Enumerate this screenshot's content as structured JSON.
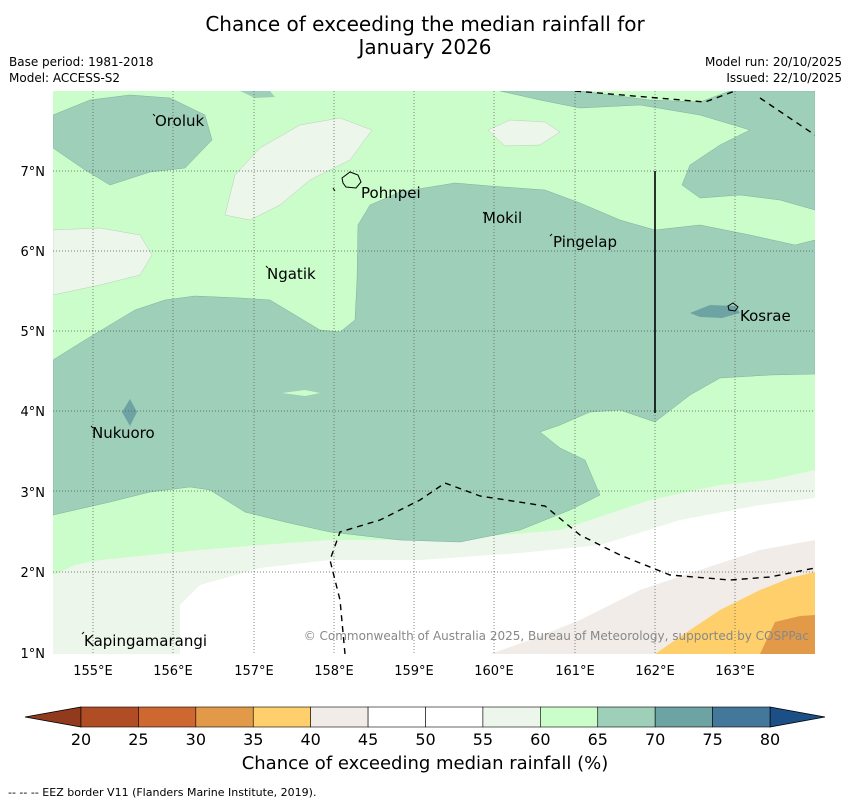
{
  "header": {
    "title_line1": "Chance of exceeding the median rainfall for",
    "title_line2": "January 2026",
    "base_period": "Base period: 1981-2018",
    "model": "Model: ACCESS-S2",
    "model_run": "Model run: 20/10/2025",
    "issued": "Issued: 22/10/2025"
  },
  "map": {
    "lon_labels": [
      "155°E",
      "156°E",
      "157°E",
      "158°E",
      "159°E",
      "160°E",
      "161°E",
      "162°E",
      "163°E"
    ],
    "lat_labels": [
      "7°N",
      "6°N",
      "5°N",
      "4°N",
      "3°N",
      "2°N",
      "1°N"
    ],
    "places": [
      {
        "name": "Oroluk"
      },
      {
        "name": "Pohnpei"
      },
      {
        "name": "Mokil"
      },
      {
        "name": "Pingelap"
      },
      {
        "name": "Ngatik"
      },
      {
        "name": "Kosrae"
      },
      {
        "name": "Nukuoro"
      },
      {
        "name": "Kapingamarangi"
      }
    ],
    "copyright": "© Commonwealth of Australia 2025, Bureau of Meteorology, supported by COSPPac"
  },
  "colorbar": {
    "ticks": [
      "20",
      "25",
      "30",
      "35",
      "40",
      "45",
      "50",
      "55",
      "60",
      "65",
      "70",
      "75",
      "80"
    ],
    "colors": [
      "#b14d25",
      "#cf6731",
      "#e39a48",
      "#fecf6a",
      "#f1ece8",
      "#ffffff",
      "#ffffff",
      "#ecf6ea",
      "#cbfdca",
      "#9ecfb9",
      "#6ea3a4",
      "#43789a"
    ],
    "under_color": "#913a1e",
    "over_color": "#1b4f85",
    "label": "Chance of exceeding median rainfall (%)"
  },
  "legend": {
    "footnote": "-- -- -- EEZ border V11 (Flanders Marine Institute, 2019)."
  },
  "colors": {
    "c40": "#f1ece8",
    "c50": "#ffffff",
    "c55": "#ecf6ea",
    "c60": "#cbfdca",
    "c65": "#9ecfb9",
    "c70": "#6ea3a4",
    "c35": "#fecf6a",
    "c30": "#e39a48"
  }
}
